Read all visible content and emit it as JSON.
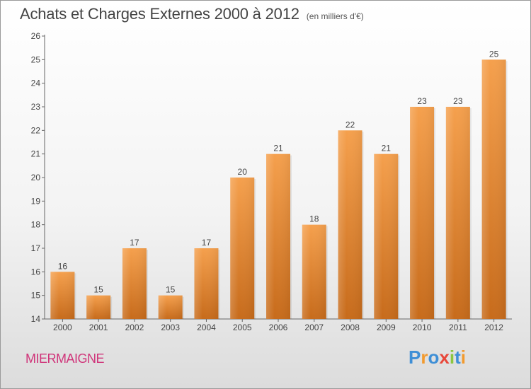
{
  "title": "Achats et Charges Externes 2000 à 2012",
  "subtitle": "(en milliers d'€)",
  "commune": "MIERMAIGNE",
  "logo": {
    "text": "Proxiti",
    "letter_colors": [
      "#3f8fd6",
      "#f29a2e",
      "#3f8fd6",
      "#e8473a",
      "#8cc63f",
      "#3f8fd6",
      "#f29a2e"
    ]
  },
  "colors": {
    "bar_top": "#f5a04d",
    "bar_bottom": "#c76b1b",
    "commune": "#d0357a"
  },
  "chart_data": {
    "type": "bar",
    "categories": [
      "2000",
      "2001",
      "2002",
      "2003",
      "2004",
      "2005",
      "2006",
      "2007",
      "2008",
      "2009",
      "2010",
      "2011",
      "2012"
    ],
    "values": [
      16,
      15,
      17,
      15,
      17,
      20,
      21,
      18,
      22,
      21,
      23,
      23,
      25
    ],
    "title": "Achats et Charges Externes 2000 à 2012",
    "xlabel": "",
    "ylabel": "",
    "ylim": [
      14,
      26
    ],
    "yticks": [
      14,
      15,
      16,
      17,
      18,
      19,
      20,
      21,
      22,
      23,
      24,
      25,
      26
    ],
    "grid": false,
    "data_labels": true
  }
}
